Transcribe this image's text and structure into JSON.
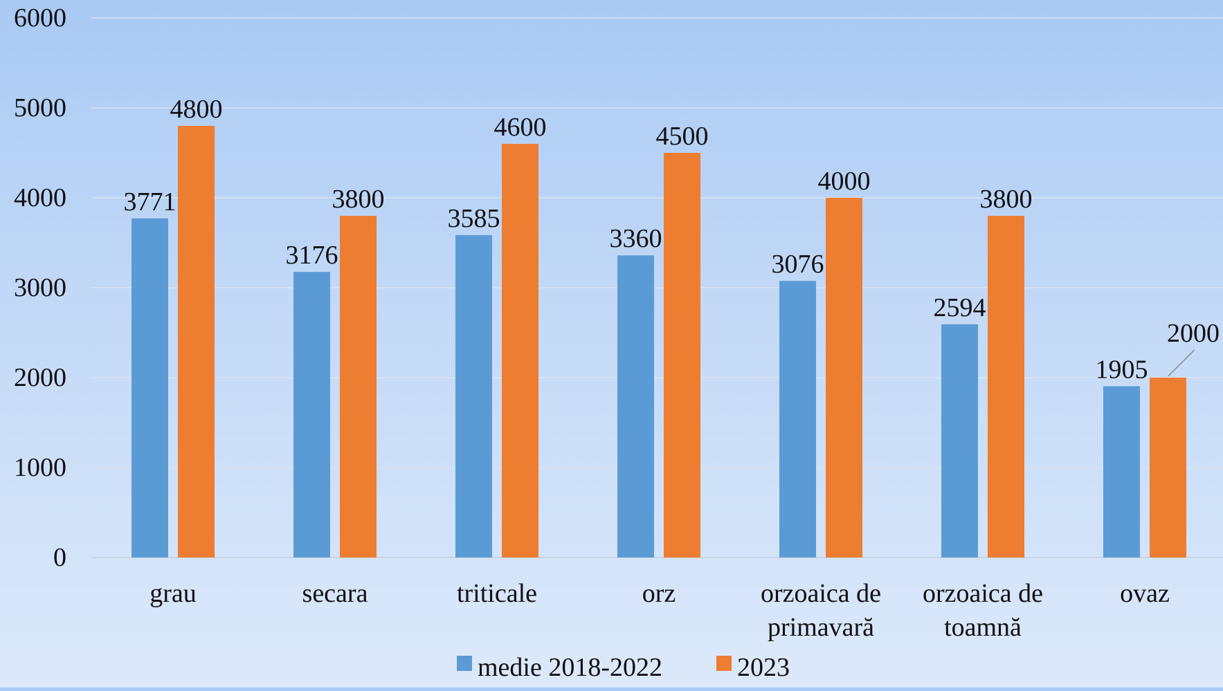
{
  "chart_data": {
    "type": "bar",
    "categories": [
      [
        "grau"
      ],
      [
        "secara"
      ],
      [
        "triticale"
      ],
      [
        "orz"
      ],
      [
        "orzoaica de",
        "primavară"
      ],
      [
        "orzoaica de",
        "toamnă"
      ],
      [
        "ovaz"
      ]
    ],
    "series": [
      {
        "name": "medie 2018-2022",
        "color": "#5b9bd5",
        "values": [
          3771,
          3176,
          3585,
          3360,
          3076,
          2594,
          1905
        ]
      },
      {
        "name": "2023",
        "color": "#ed7d31",
        "values": [
          4800,
          3800,
          4600,
          4500,
          4000,
          3800,
          2000
        ]
      }
    ],
    "ylim": [
      0,
      6000
    ],
    "yticks": [
      0,
      1000,
      2000,
      3000,
      4000,
      5000,
      6000
    ],
    "grid": true,
    "data_labels": true,
    "legend_position": "bottom"
  }
}
